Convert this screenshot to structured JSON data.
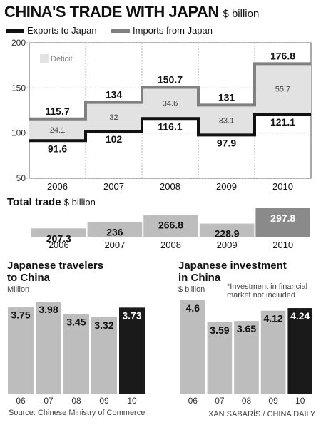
{
  "title": "CHINA'S TRADE WITH JAPAN",
  "title_unit": "$ billion",
  "legend": {
    "exports": "Exports to Japan",
    "imports": "Imports from Japan",
    "deficit": "Deficit"
  },
  "total_trade": {
    "title": "Total trade",
    "unit": "$ billion"
  },
  "travelers": {
    "title_line1": "Japanese travelers",
    "title_line2": "to China",
    "unit": "Million"
  },
  "investment": {
    "title_line1": "Japanese investment",
    "title_line2": "in China",
    "unit": "$ billion",
    "note_line1": "*Investment in financial",
    "note_line2": "market not included"
  },
  "source": "Source: Chinese Ministry of Commerce",
  "credit": "XAN SABARÍS / CHINA DAILY",
  "colors": {
    "exports": "#111111",
    "imports": "#808080",
    "deficit": "#e2e2e2",
    "bar": "#bdbdbd",
    "bar_dark": "#8a8a8a",
    "bar_black": "#1a1a1a"
  },
  "chart_data": [
    {
      "type": "line",
      "title": "CHINA'S TRADE WITH JAPAN",
      "unit": "$ billion",
      "categories": [
        "2006",
        "2007",
        "2008",
        "2009",
        "2010"
      ],
      "series": [
        {
          "name": "Exports to Japan",
          "values": [
            91.6,
            102,
            116.1,
            97.9,
            121.1
          ],
          "labels": [
            "91.6",
            "102",
            "116.1",
            "97.9",
            "121.1"
          ]
        },
        {
          "name": "Imports from Japan",
          "values": [
            115.7,
            134,
            150.7,
            131,
            176.8
          ],
          "labels": [
            "115.7",
            "134",
            "150.7",
            "131",
            "176.8"
          ]
        },
        {
          "name": "Deficit",
          "values": [
            24.1,
            32,
            34.6,
            33.1,
            55.7
          ],
          "labels": [
            "24.1",
            "32",
            "34.6",
            "33.1",
            "55.7"
          ]
        }
      ],
      "ylim": [
        50,
        200
      ],
      "yticks": [
        "50",
        "100",
        "150",
        "200"
      ],
      "ytick_values": [
        50,
        100,
        150,
        200
      ],
      "grid": true
    },
    {
      "type": "bar",
      "title": "Total trade",
      "unit": "$ billion",
      "categories": [
        "2006",
        "2007",
        "2008",
        "2009",
        "2010"
      ],
      "values": [
        207.3,
        236,
        266.8,
        228.9,
        297.8
      ],
      "labels": [
        "207.3",
        "236",
        "266.8",
        "228.9",
        "297.8"
      ]
    },
    {
      "type": "bar",
      "title": "Japanese travelers to China",
      "unit": "Million",
      "categories": [
        "06",
        "07",
        "08",
        "09",
        "10"
      ],
      "values": [
        3.75,
        3.98,
        3.45,
        3.32,
        3.73
      ],
      "labels": [
        "3.75",
        "3.98",
        "3.45",
        "3.32",
        "3.73"
      ]
    },
    {
      "type": "bar",
      "title": "Japanese investment in China",
      "unit": "$ billion",
      "categories": [
        "06",
        "07",
        "08",
        "09",
        "10"
      ],
      "values": [
        4.6,
        3.59,
        3.65,
        4.12,
        4.24
      ],
      "labels": [
        "4.6",
        "3.59",
        "3.65",
        "4.12",
        "4.24"
      ]
    }
  ]
}
